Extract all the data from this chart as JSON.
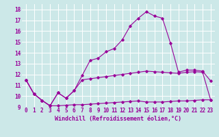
{
  "background_color": "#cce8e8",
  "line_color": "#990099",
  "grid_color": "#ffffff",
  "xlim": [
    -0.5,
    23.5
  ],
  "ylim": [
    9,
    18.5
  ],
  "xticks": [
    0,
    1,
    2,
    3,
    4,
    5,
    6,
    7,
    8,
    9,
    10,
    11,
    12,
    13,
    14,
    15,
    16,
    17,
    18,
    19,
    20,
    21,
    22,
    23
  ],
  "yticks": [
    9,
    10,
    11,
    12,
    13,
    14,
    15,
    16,
    17,
    18
  ],
  "xlabel": "Windchill (Refroidissement éolien,°C)",
  "line1_x": [
    0,
    1,
    2,
    3,
    4,
    5,
    6,
    7,
    8,
    9,
    10,
    11,
    12,
    13,
    14,
    15,
    16,
    17,
    18,
    19,
    20,
    21,
    22,
    23
  ],
  "line1_y": [
    11.5,
    10.2,
    9.6,
    9.1,
    9.1,
    9.15,
    9.2,
    9.2,
    9.25,
    9.3,
    9.35,
    9.4,
    9.45,
    9.5,
    9.55,
    9.45,
    9.45,
    9.45,
    9.5,
    9.55,
    9.55,
    9.6,
    9.65,
    9.65
  ],
  "line2_x": [
    0,
    1,
    2,
    3,
    4,
    5,
    6,
    7,
    8,
    9,
    10,
    11,
    12,
    13,
    14,
    15,
    16,
    17,
    18,
    19,
    20,
    21,
    22,
    23
  ],
  "line2_y": [
    11.5,
    10.2,
    9.6,
    9.1,
    10.3,
    9.8,
    10.5,
    11.5,
    11.6,
    11.7,
    11.8,
    11.9,
    12.0,
    12.1,
    12.2,
    12.3,
    12.25,
    12.2,
    12.15,
    12.1,
    12.2,
    12.25,
    12.2,
    9.65
  ],
  "line3_x": [
    0,
    1,
    2,
    3,
    4,
    5,
    6,
    7,
    8,
    9,
    10,
    11,
    12,
    13,
    14,
    15,
    16,
    17,
    18,
    19,
    20,
    21,
    22,
    23
  ],
  "line3_y": [
    11.5,
    10.2,
    9.6,
    9.1,
    10.3,
    9.8,
    10.5,
    11.9,
    13.3,
    13.5,
    14.1,
    14.4,
    15.2,
    16.5,
    17.2,
    17.8,
    17.4,
    17.2,
    14.9,
    12.2,
    12.4,
    12.4,
    12.3,
    11.4
  ],
  "tick_fontsize": 5.5,
  "xlabel_fontsize": 6.0
}
